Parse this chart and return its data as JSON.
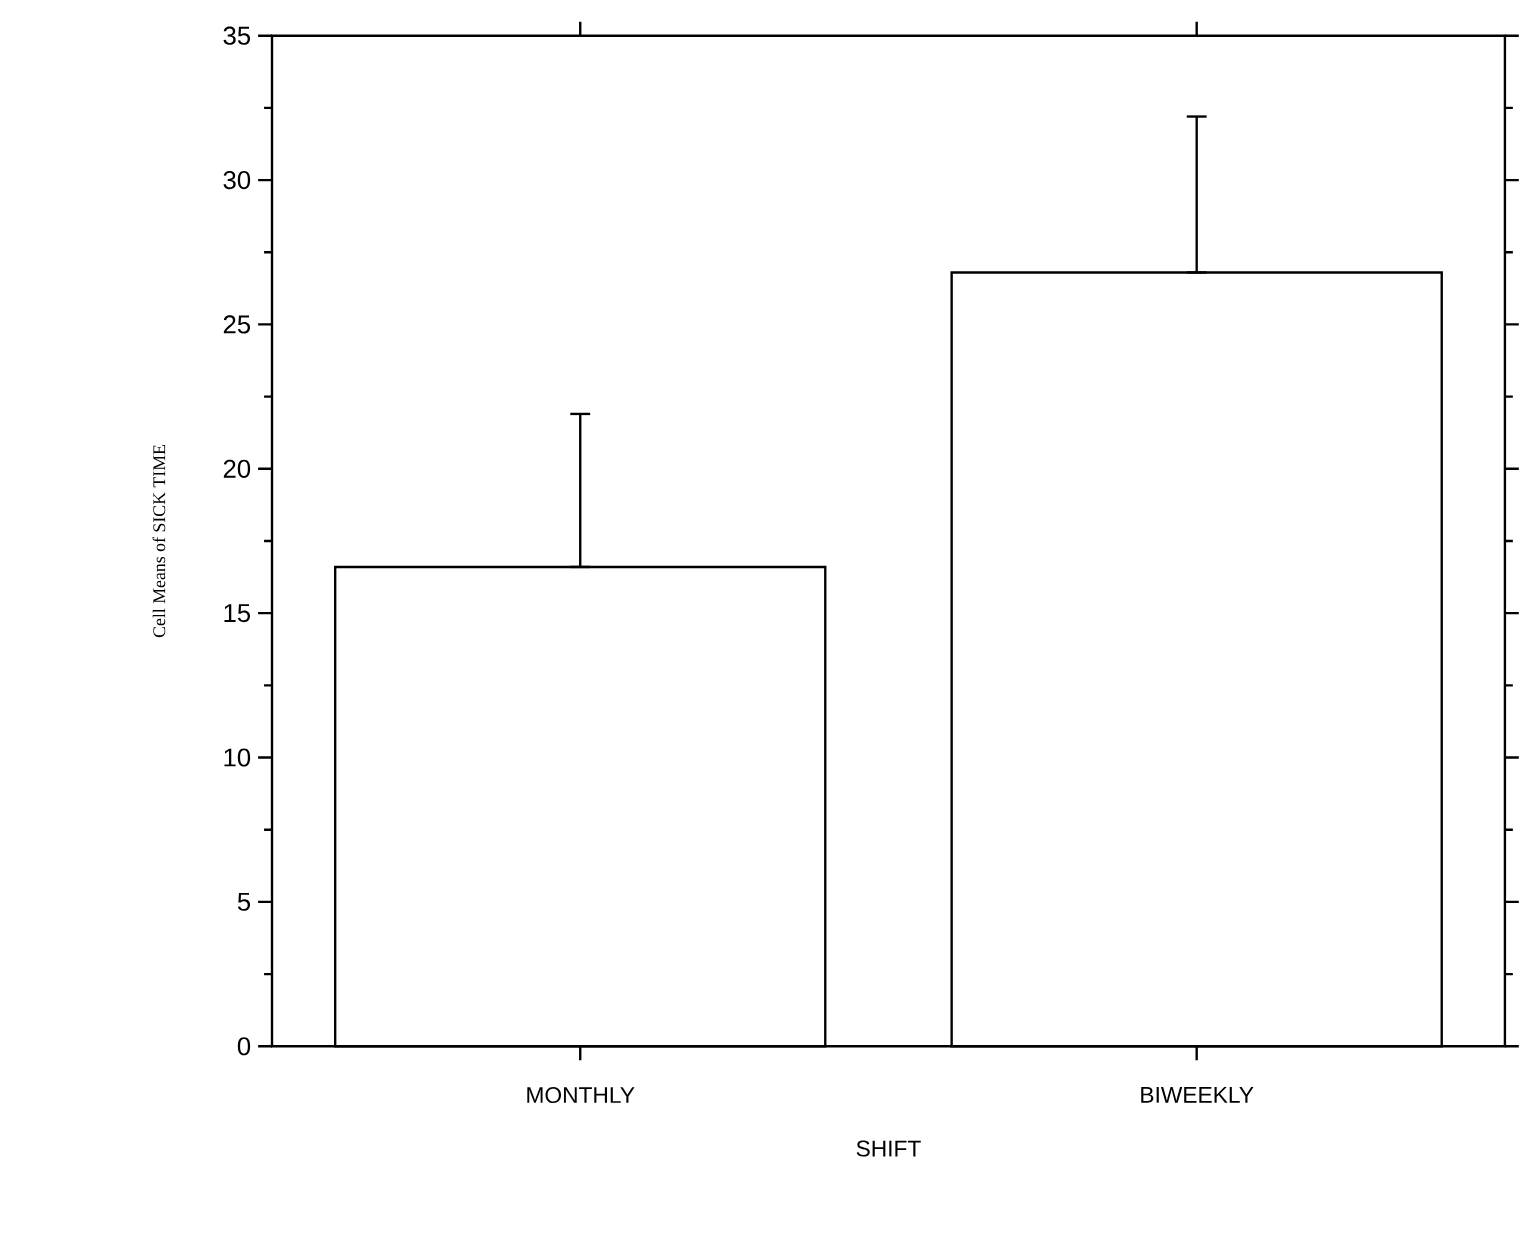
{
  "chart_data": {
    "type": "bar",
    "xlabel": "SHIFT",
    "ylabel": "Cell Means of SICK TIME",
    "categories": [
      "MONTHLY",
      "BIWEEKLY"
    ],
    "values": [
      16.6,
      26.8
    ],
    "color": "#ffffff",
    "errors": [
      [
        16.6,
        21.9
      ],
      [
        26.8,
        32.2
      ]
    ],
    "ylim": [
      0,
      35
    ],
    "yticks": [
      0,
      5,
      10,
      15,
      20,
      25,
      30,
      35
    ]
  }
}
